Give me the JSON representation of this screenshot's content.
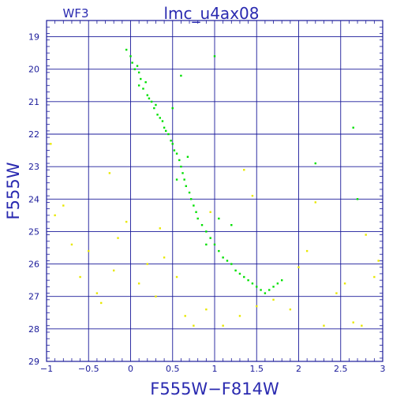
{
  "chart_data": {
    "type": "scatter",
    "corner_label": "WF3",
    "title": "lmc_u4ax08",
    "xlabel": "F555W−F814W",
    "ylabel": "F555W",
    "xlim": [
      -1,
      3
    ],
    "ylim": [
      29,
      18.5
    ],
    "y_inverted": true,
    "grid": true,
    "x_ticks": [
      -1,
      -0.5,
      0,
      0.5,
      1,
      1.5,
      2,
      2.5,
      3
    ],
    "x_tick_labels": [
      "−1",
      "−0.5",
      "0",
      "0.5",
      "1",
      "1.5",
      "2",
      "2.5",
      "3"
    ],
    "y_ticks": [
      19,
      20,
      21,
      22,
      23,
      24,
      25,
      26,
      27,
      28,
      29
    ],
    "y_tick_labels": [
      "19",
      "20",
      "21",
      "22",
      "23",
      "24",
      "25",
      "26",
      "27",
      "28",
      "29"
    ],
    "colors": {
      "axes": "#1a1a9a",
      "grid": "#1a1a9a",
      "main_sequence": "#00e000",
      "field": "#e8e800"
    },
    "series": [
      {
        "color_key": "main_sequence",
        "points": [
          [
            -0.05,
            19.4
          ],
          [
            0.0,
            19.6
          ],
          [
            0.02,
            19.8
          ],
          [
            0.05,
            20.0
          ],
          [
            0.08,
            19.9
          ],
          [
            0.1,
            20.1
          ],
          [
            0.12,
            20.3
          ],
          [
            0.1,
            20.5
          ],
          [
            0.15,
            20.6
          ],
          [
            0.18,
            20.4
          ],
          [
            0.2,
            20.8
          ],
          [
            0.22,
            20.9
          ],
          [
            0.25,
            21.0
          ],
          [
            0.28,
            21.2
          ],
          [
            0.3,
            21.1
          ],
          [
            0.32,
            21.4
          ],
          [
            0.35,
            21.5
          ],
          [
            0.38,
            21.6
          ],
          [
            0.4,
            21.8
          ],
          [
            0.42,
            21.9
          ],
          [
            0.45,
            22.0
          ],
          [
            0.48,
            22.2
          ],
          [
            0.5,
            22.3
          ],
          [
            0.52,
            22.5
          ],
          [
            0.55,
            22.6
          ],
          [
            0.58,
            22.8
          ],
          [
            0.6,
            23.0
          ],
          [
            0.62,
            23.2
          ],
          [
            0.64,
            23.4
          ],
          [
            0.66,
            23.6
          ],
          [
            0.7,
            23.8
          ],
          [
            0.72,
            24.0
          ],
          [
            0.75,
            24.2
          ],
          [
            0.78,
            24.4
          ],
          [
            0.8,
            24.6
          ],
          [
            0.85,
            24.8
          ],
          [
            0.9,
            25.0
          ],
          [
            0.95,
            25.2
          ],
          [
            1.0,
            25.4
          ],
          [
            1.05,
            25.6
          ],
          [
            1.1,
            25.8
          ],
          [
            1.15,
            25.9
          ],
          [
            1.2,
            26.0
          ],
          [
            1.25,
            26.2
          ],
          [
            1.3,
            26.3
          ],
          [
            1.35,
            26.4
          ],
          [
            1.4,
            26.5
          ],
          [
            1.45,
            26.6
          ],
          [
            1.5,
            26.7
          ],
          [
            1.55,
            26.8
          ],
          [
            1.6,
            26.9
          ],
          [
            1.65,
            26.8
          ],
          [
            1.7,
            26.7
          ],
          [
            1.75,
            26.6
          ],
          [
            1.8,
            26.5
          ],
          [
            0.9,
            25.4
          ],
          [
            1.05,
            24.6
          ],
          [
            1.2,
            24.8
          ],
          [
            0.55,
            23.4
          ],
          [
            0.68,
            22.7
          ],
          [
            0.5,
            21.2
          ],
          [
            0.6,
            20.2
          ],
          [
            1.0,
            19.6
          ],
          [
            2.2,
            22.9
          ],
          [
            2.65,
            21.8
          ],
          [
            2.7,
            24.0
          ]
        ]
      },
      {
        "color_key": "field",
        "points": [
          [
            -0.95,
            22.3
          ],
          [
            -0.8,
            24.2
          ],
          [
            -0.7,
            25.4
          ],
          [
            -0.6,
            26.4
          ],
          [
            -0.5,
            25.6
          ],
          [
            -0.4,
            26.9
          ],
          [
            -0.35,
            27.2
          ],
          [
            -0.2,
            26.2
          ],
          [
            -0.15,
            25.2
          ],
          [
            -0.05,
            24.7
          ],
          [
            0.1,
            26.6
          ],
          [
            0.2,
            26.0
          ],
          [
            0.3,
            27.0
          ],
          [
            0.4,
            25.8
          ],
          [
            0.55,
            26.4
          ],
          [
            0.65,
            27.6
          ],
          [
            0.75,
            27.9
          ],
          [
            0.9,
            27.4
          ],
          [
            1.1,
            27.9
          ],
          [
            1.3,
            27.6
          ],
          [
            1.5,
            27.3
          ],
          [
            1.7,
            27.1
          ],
          [
            1.9,
            27.4
          ],
          [
            2.0,
            26.1
          ],
          [
            2.1,
            25.6
          ],
          [
            2.2,
            24.1
          ],
          [
            2.3,
            27.9
          ],
          [
            2.45,
            26.9
          ],
          [
            2.55,
            26.6
          ],
          [
            2.65,
            27.8
          ],
          [
            2.75,
            27.9
          ],
          [
            2.8,
            25.1
          ],
          [
            2.9,
            26.4
          ],
          [
            2.95,
            25.9
          ],
          [
            1.45,
            23.9
          ],
          [
            1.35,
            23.1
          ],
          [
            0.95,
            24.4
          ],
          [
            0.35,
            24.9
          ],
          [
            -0.9,
            24.5
          ],
          [
            -0.25,
            23.2
          ]
        ]
      }
    ]
  }
}
